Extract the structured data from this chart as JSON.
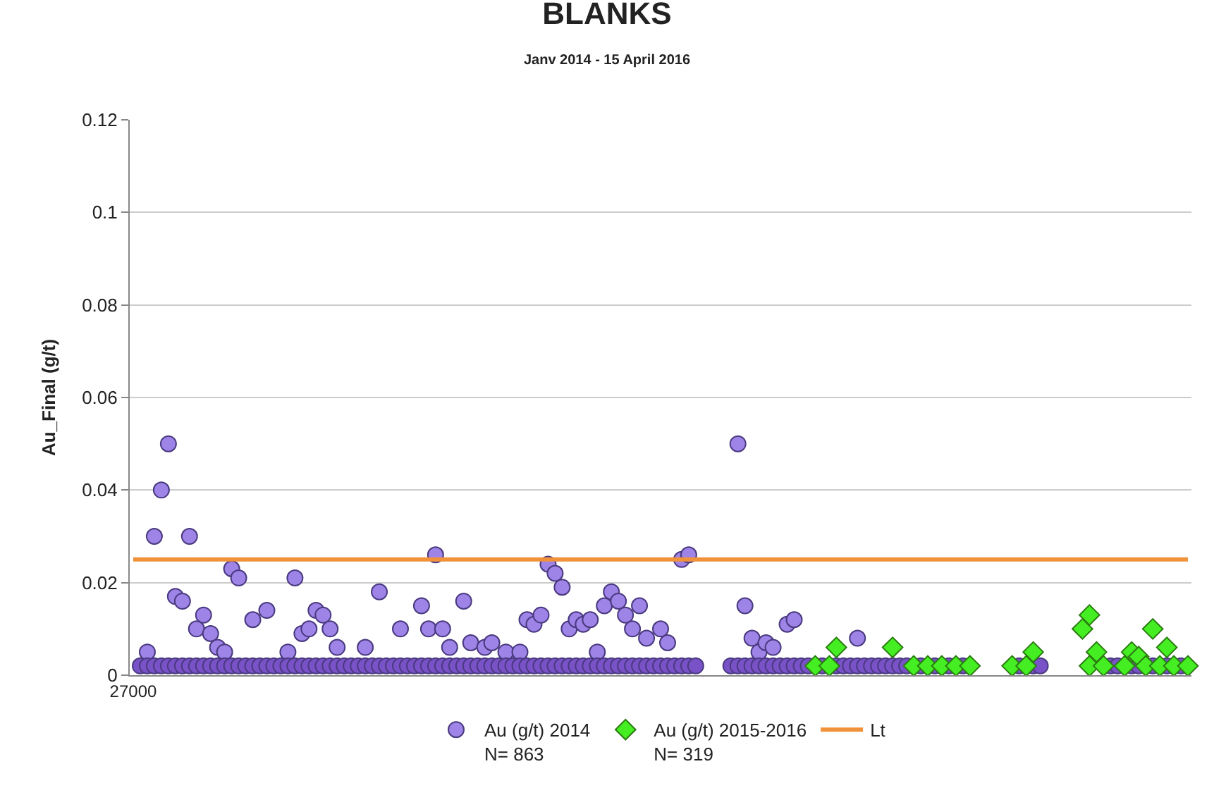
{
  "chart_data": {
    "type": "scatter",
    "title": "BLANKS",
    "subtitle": "Janv 2014 - 15 April 2016",
    "ylabel": "Au_Final (g/t)",
    "categories": [
      "27000",
      null,
      null,
      null,
      null,
      null,
      null,
      null,
      null,
      null,
      null,
      null,
      null,
      null,
      null,
      null,
      null,
      null,
      null,
      null,
      null,
      null,
      null,
      null,
      null,
      null,
      null,
      null,
      null,
      null,
      null,
      null,
      null,
      null,
      null,
      null,
      null,
      null,
      null,
      null,
      null,
      null,
      null,
      null,
      null,
      null,
      null,
      null,
      null,
      null,
      null,
      null,
      null,
      null,
      null,
      null,
      null,
      null,
      null,
      null,
      null,
      null,
      null,
      null,
      null,
      null,
      null,
      null,
      null,
      null,
      null,
      null,
      null,
      null,
      null,
      null,
      null,
      null,
      null,
      null,
      null,
      null,
      null,
      null,
      null,
      null,
      null,
      null,
      null,
      null,
      null,
      null,
      null,
      null,
      null,
      null,
      null,
      null,
      null,
      null,
      null,
      null,
      null,
      null,
      null,
      null,
      null,
      null,
      null,
      null,
      null,
      null,
      null,
      null,
      null,
      null,
      null,
      null,
      null,
      null,
      null,
      null,
      null,
      null,
      null,
      null,
      null,
      null,
      null,
      null,
      null,
      null,
      null,
      null,
      null,
      null,
      null,
      null,
      null,
      null,
      null,
      null,
      null,
      null,
      null,
      null,
      null,
      null,
      null,
      null,
      null
    ],
    "ylim": [
      0,
      0.12
    ],
    "yticks": [
      0,
      0.02,
      0.04,
      0.06,
      0.08,
      0.1,
      0.12
    ],
    "grid": "y",
    "legend": "bottom",
    "ref_lines": [
      {
        "axis": "y",
        "value": 0.025,
        "label": "Lt",
        "color": "#f0923a"
      }
    ],
    "series": [
      {
        "name": "Au (g/t) 2014\nN= 863",
        "color": "#9f84e8",
        "marker": "circle",
        "values": [
          null,
          null,
          0.005,
          0.03,
          0.04,
          0.05,
          0.017,
          0.016,
          0.03,
          0.01,
          0.013,
          0.009,
          0.006,
          0.005,
          0.023,
          0.021,
          null,
          0.012,
          null,
          0.014,
          null,
          null,
          0.005,
          0.021,
          0.009,
          0.01,
          0.014,
          0.013,
          0.01,
          0.006,
          null,
          null,
          null,
          0.006,
          null,
          0.018,
          null,
          null,
          0.01,
          null,
          null,
          0.015,
          0.01,
          0.026,
          0.01,
          0.006,
          null,
          0.016,
          0.007,
          null,
          0.006,
          0.007,
          null,
          0.005,
          null,
          0.005,
          0.012,
          0.011,
          0.013,
          0.024,
          0.022,
          0.019,
          0.01,
          0.012,
          0.011,
          0.012,
          0.005,
          0.015,
          0.018,
          0.016,
          0.013,
          0.01,
          0.015,
          0.008,
          null,
          0.01,
          0.007,
          null,
          0.025,
          0.026,
          null,
          null,
          null,
          null,
          null,
          null,
          0.05,
          0.015,
          0.008,
          0.005,
          0.007,
          0.006,
          null,
          0.011,
          0.012,
          null,
          null,
          null,
          null,
          null,
          null,
          null,
          null,
          0.008,
          null,
          null,
          null,
          null,
          null,
          null,
          null,
          null,
          null,
          null,
          null,
          null,
          null,
          null,
          null,
          null,
          null,
          null,
          null,
          null,
          null,
          null,
          null,
          null,
          null,
          null,
          null,
          null,
          null,
          null,
          null,
          null,
          null,
          null,
          null,
          null,
          null,
          null,
          null,
          null,
          null,
          null,
          null,
          null,
          null,
          null,
          null
        ]
      },
      {
        "color": "#7a52c8",
        "marker": "circle",
        "values": [
          null,
          0.002,
          0.002,
          0.002,
          0.002,
          0.002,
          0.002,
          0.002,
          0.002,
          0.002,
          0.002,
          0.002,
          0.002,
          0.002,
          0.002,
          0.002,
          0.002,
          0.002,
          0.002,
          0.002,
          0.002,
          0.002,
          0.002,
          0.002,
          0.002,
          0.002,
          0.002,
          0.002,
          0.002,
          0.002,
          0.002,
          0.002,
          0.002,
          0.002,
          0.002,
          0.002,
          0.002,
          0.002,
          0.002,
          0.002,
          0.002,
          0.002,
          0.002,
          0.002,
          0.002,
          0.002,
          0.002,
          0.002,
          0.002,
          0.002,
          0.002,
          0.002,
          0.002,
          0.002,
          0.002,
          0.002,
          0.002,
          0.002,
          0.002,
          0.002,
          0.002,
          0.002,
          0.002,
          0.002,
          0.002,
          0.002,
          0.002,
          0.002,
          0.002,
          0.002,
          0.002,
          0.002,
          0.002,
          0.002,
          0.002,
          0.002,
          0.002,
          0.002,
          0.002,
          0.002,
          0.002,
          null,
          null,
          null,
          null,
          0.002,
          0.002,
          0.002,
          0.002,
          0.002,
          0.002,
          0.002,
          0.002,
          0.002,
          0.002,
          0.002,
          0.002,
          null,
          0.002,
          null,
          0.002,
          0.002,
          0.002,
          0.002,
          0.002,
          0.002,
          0.002,
          0.002,
          0.002,
          0.002,
          0.002,
          null,
          0.002,
          null,
          0.002,
          null,
          0.002,
          null,
          0.002,
          null,
          null,
          null,
          null,
          null,
          null,
          null,
          0.002,
          null,
          0.002,
          0.002,
          null,
          null,
          null,
          null,
          null,
          null,
          null,
          null,
          null,
          0.002,
          0.002,
          null,
          0.002,
          0.002,
          null,
          0.002,
          null,
          0.002,
          null,
          0.002,
          null
        ]
      },
      {
        "name": "Au (g/t) 2015-2016\nN= 319",
        "color": "#44ee22",
        "marker": "diamond",
        "values": [
          null,
          null,
          null,
          null,
          null,
          null,
          null,
          null,
          null,
          null,
          null,
          null,
          null,
          null,
          null,
          null,
          null,
          null,
          null,
          null,
          null,
          null,
          null,
          null,
          null,
          null,
          null,
          null,
          null,
          null,
          null,
          null,
          null,
          null,
          null,
          null,
          null,
          null,
          null,
          null,
          null,
          null,
          null,
          null,
          null,
          null,
          null,
          null,
          null,
          null,
          null,
          null,
          null,
          null,
          null,
          null,
          null,
          null,
          null,
          null,
          null,
          null,
          null,
          null,
          null,
          null,
          null,
          null,
          null,
          null,
          null,
          null,
          null,
          null,
          null,
          null,
          null,
          null,
          null,
          null,
          null,
          null,
          null,
          null,
          null,
          null,
          null,
          null,
          null,
          null,
          null,
          null,
          null,
          null,
          null,
          null,
          null,
          null,
          null,
          null,
          0.006,
          null,
          null,
          null,
          null,
          null,
          null,
          null,
          0.006,
          null,
          null,
          null,
          null,
          null,
          null,
          null,
          null,
          null,
          null,
          null,
          null,
          null,
          null,
          null,
          null,
          null,
          null,
          null,
          0.005,
          null,
          null,
          null,
          null,
          null,
          null,
          0.01,
          0.013,
          0.005,
          null,
          null,
          null,
          null,
          0.005,
          0.004,
          null,
          0.01,
          null,
          0.006,
          null,
          null,
          null
        ]
      },
      {
        "color": "#44ee22",
        "marker": "diamond",
        "values": [
          null,
          null,
          null,
          null,
          null,
          null,
          null,
          null,
          null,
          null,
          null,
          null,
          null,
          null,
          null,
          null,
          null,
          null,
          null,
          null,
          null,
          null,
          null,
          null,
          null,
          null,
          null,
          null,
          null,
          null,
          null,
          null,
          null,
          null,
          null,
          null,
          null,
          null,
          null,
          null,
          null,
          null,
          null,
          null,
          null,
          null,
          null,
          null,
          null,
          null,
          null,
          null,
          null,
          null,
          null,
          null,
          null,
          null,
          null,
          null,
          null,
          null,
          null,
          null,
          null,
          null,
          null,
          null,
          null,
          null,
          null,
          null,
          null,
          null,
          null,
          null,
          null,
          null,
          null,
          null,
          null,
          null,
          null,
          null,
          null,
          null,
          null,
          null,
          null,
          null,
          null,
          null,
          null,
          null,
          null,
          null,
          null,
          0.002,
          null,
          0.002,
          null,
          null,
          null,
          null,
          null,
          null,
          null,
          null,
          null,
          null,
          null,
          0.002,
          null,
          0.002,
          null,
          0.002,
          null,
          0.002,
          null,
          0.002,
          null,
          null,
          null,
          null,
          null,
          0.002,
          null,
          0.002,
          null,
          null,
          null,
          null,
          null,
          null,
          null,
          null,
          0.002,
          null,
          0.002,
          null,
          null,
          0.002,
          null,
          null,
          0.002,
          null,
          0.002,
          null,
          0.002,
          null,
          0.002
        ]
      }
    ]
  }
}
